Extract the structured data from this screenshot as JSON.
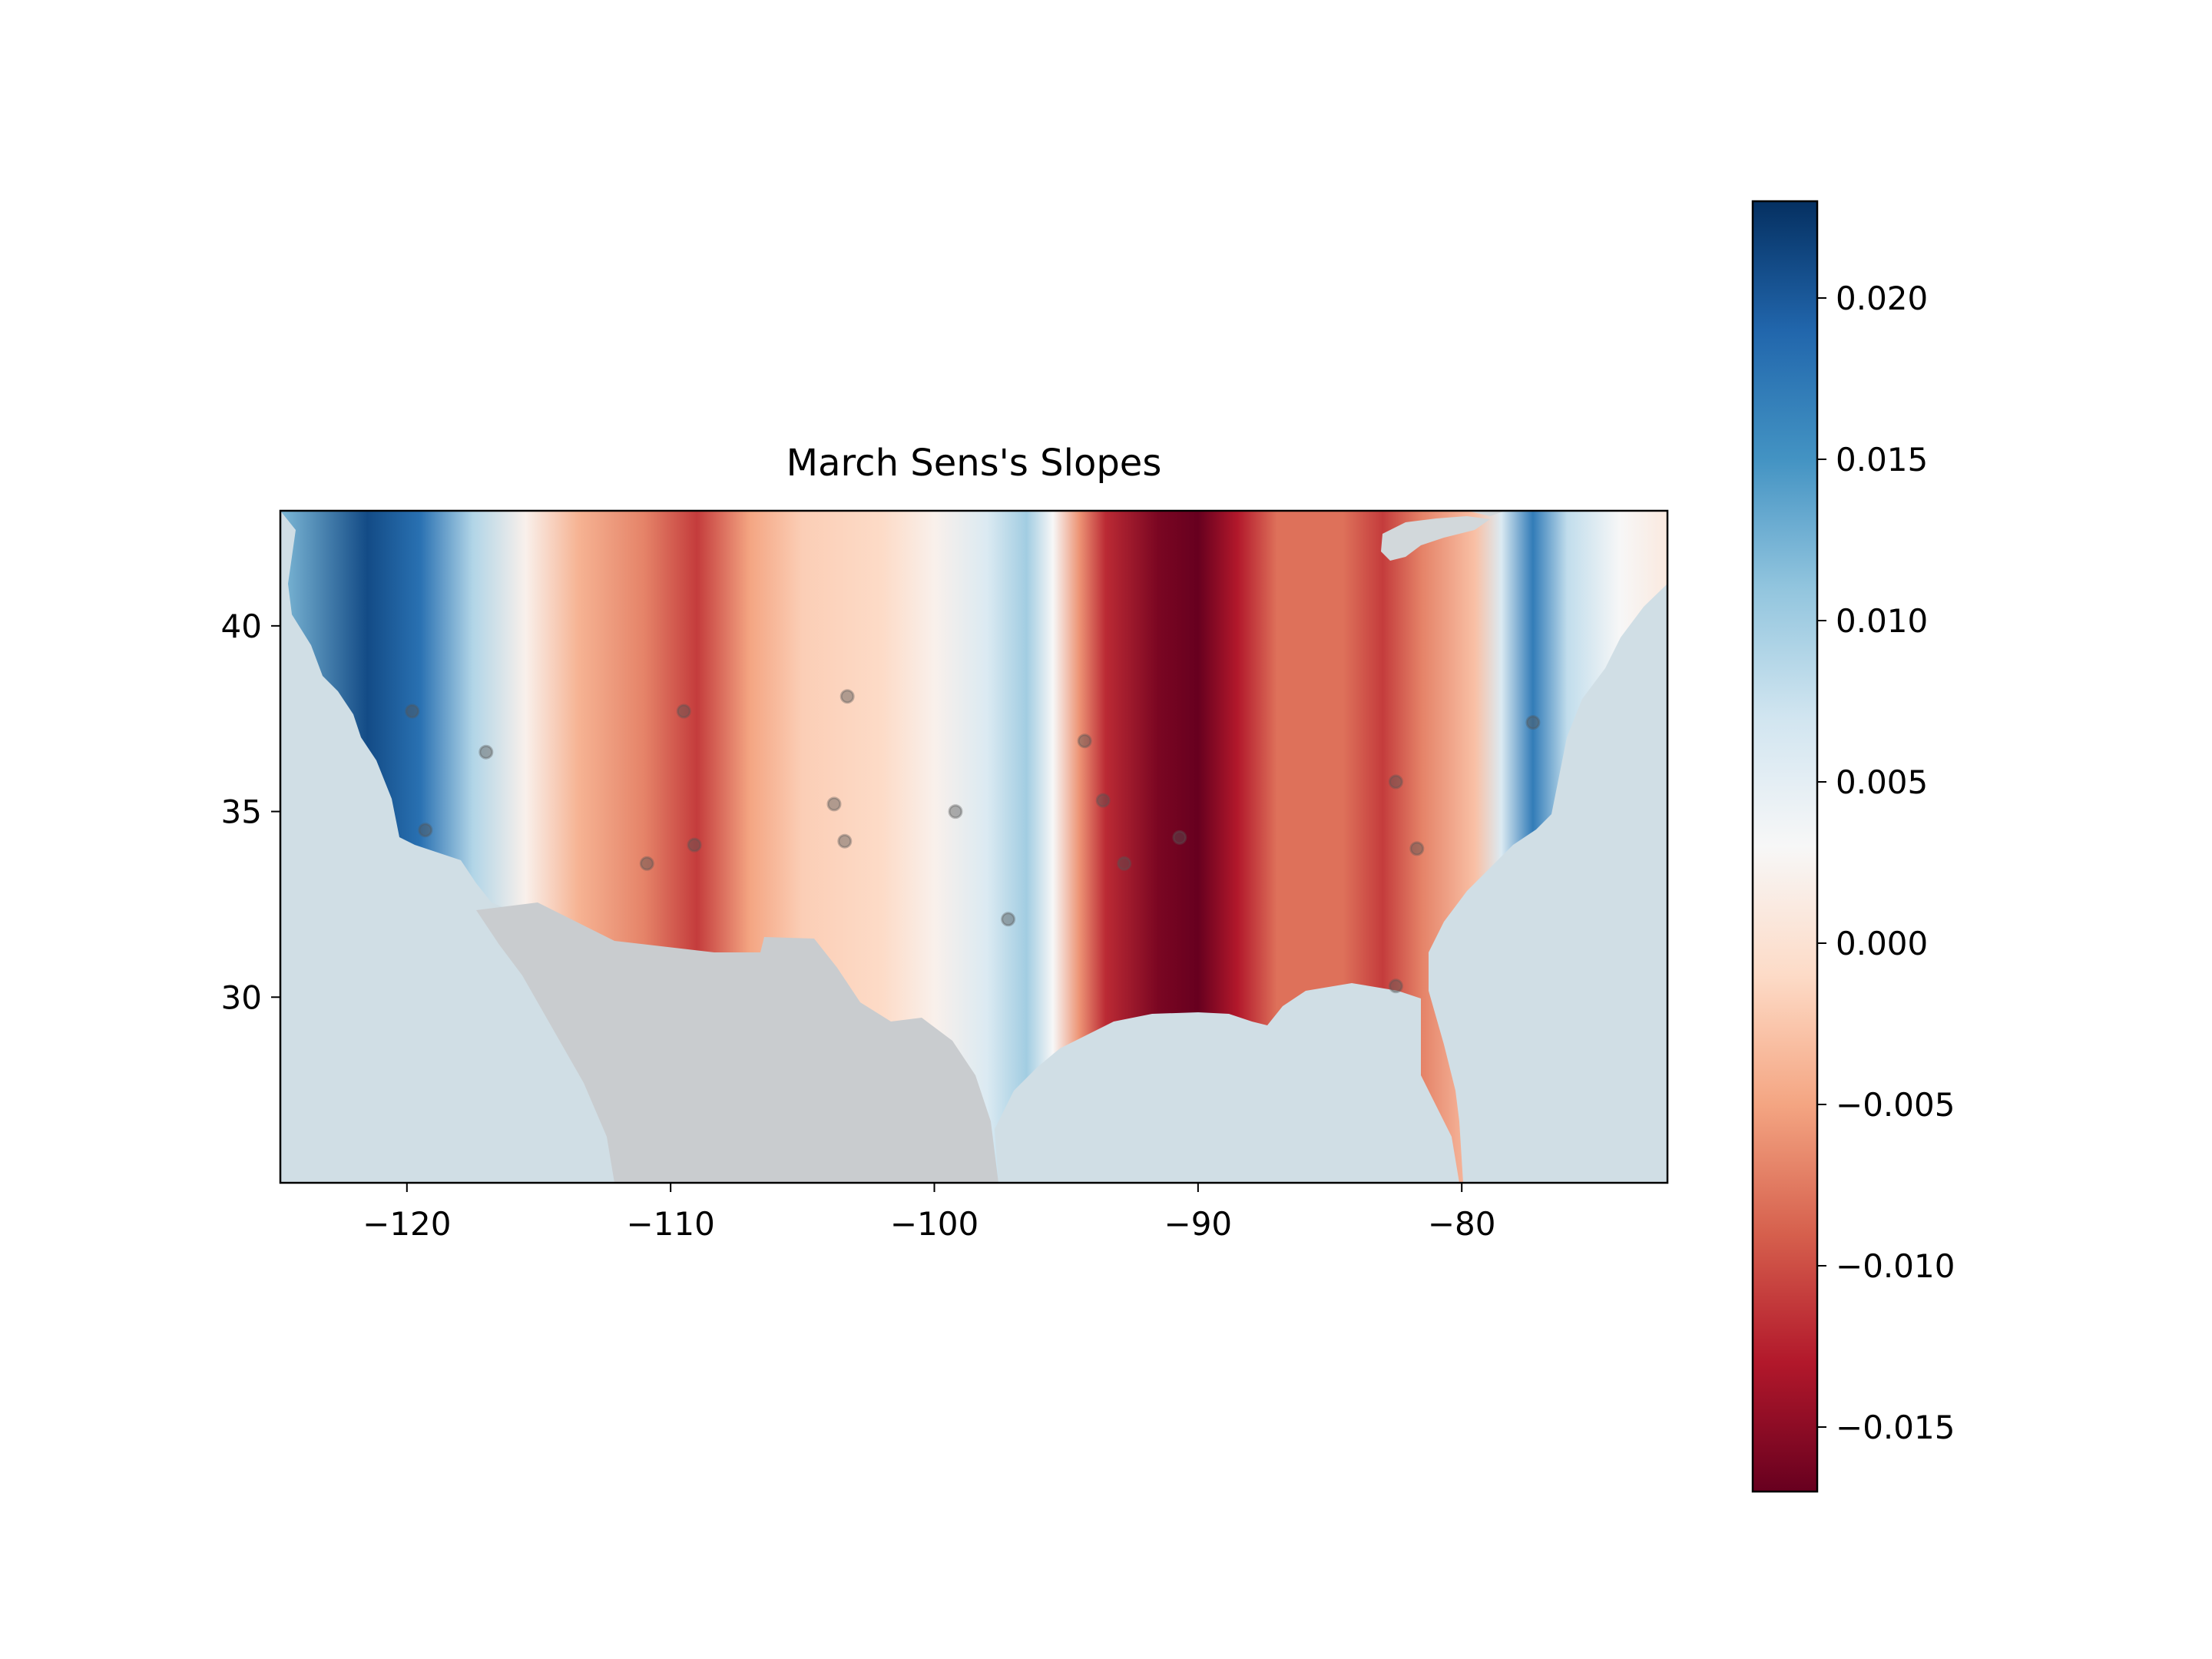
{
  "chart_data": {
    "type": "heatmap",
    "title": "March Sens's Slopes",
    "xlabel": "",
    "ylabel": "",
    "xlim": [
      -124.8,
      -72.2
    ],
    "ylim": [
      25.0,
      43.1
    ],
    "x_ticks": [
      {
        "value": -120,
        "label": "−120"
      },
      {
        "value": -110,
        "label": "−110"
      },
      {
        "value": -100,
        "label": "−100"
      },
      {
        "value": -90,
        "label": "−90"
      },
      {
        "value": -80,
        "label": "−80"
      }
    ],
    "y_ticks": [
      {
        "value": 30,
        "label": "30"
      },
      {
        "value": 35,
        "label": "35"
      },
      {
        "value": 40,
        "label": "40"
      }
    ],
    "colormap": "RdBu",
    "colorbar": {
      "range": [
        -0.017,
        0.023
      ],
      "ticks": [
        {
          "value": 0.02,
          "label": "0.020"
        },
        {
          "value": 0.015,
          "label": "0.015"
        },
        {
          "value": 0.01,
          "label": "0.010"
        },
        {
          "value": 0.005,
          "label": "0.005"
        },
        {
          "value": 0.0,
          "label": "0.000"
        },
        {
          "value": -0.005,
          "label": "−0.005"
        },
        {
          "value": -0.01,
          "label": "−0.010"
        },
        {
          "value": -0.015,
          "label": "−0.015"
        }
      ]
    },
    "slope_bands_by_longitude": [
      {
        "lon": -124.8,
        "value": 0.012
      },
      {
        "lon": -121.5,
        "value": 0.021
      },
      {
        "lon": -119.5,
        "value": 0.018
      },
      {
        "lon": -117.5,
        "value": 0.009
      },
      {
        "lon": -115.5,
        "value": 0.002
      },
      {
        "lon": -113.5,
        "value": -0.004
      },
      {
        "lon": -111.0,
        "value": -0.007
      },
      {
        "lon": -109.0,
        "value": -0.011
      },
      {
        "lon": -107.0,
        "value": -0.005
      },
      {
        "lon": -105.0,
        "value": -0.002
      },
      {
        "lon": -102.0,
        "value": -0.001
      },
      {
        "lon": -100.0,
        "value": 0.002
      },
      {
        "lon": -98.0,
        "value": 0.006
      },
      {
        "lon": -96.5,
        "value": 0.01
      },
      {
        "lon": -95.5,
        "value": 0.003
      },
      {
        "lon": -94.5,
        "value": -0.006
      },
      {
        "lon": -93.5,
        "value": -0.012
      },
      {
        "lon": -91.5,
        "value": -0.016
      },
      {
        "lon": -90.0,
        "value": -0.017
      },
      {
        "lon": -88.5,
        "value": -0.013
      },
      {
        "lon": -87.0,
        "value": -0.008
      },
      {
        "lon": -84.5,
        "value": -0.008
      },
      {
        "lon": -83.0,
        "value": -0.011
      },
      {
        "lon": -81.5,
        "value": -0.007
      },
      {
        "lon": -79.5,
        "value": -0.003
      },
      {
        "lon": -78.5,
        "value": 0.006
      },
      {
        "lon": -77.3,
        "value": 0.017
      },
      {
        "lon": -76.0,
        "value": 0.008
      },
      {
        "lon": -74.0,
        "value": 0.003
      },
      {
        "lon": -72.2,
        "value": 0.001
      }
    ],
    "stations": [
      {
        "lon": -119.8,
        "lat": 37.7
      },
      {
        "lon": -117.0,
        "lat": 36.6
      },
      {
        "lon": -119.3,
        "lat": 34.5
      },
      {
        "lon": -109.5,
        "lat": 37.7
      },
      {
        "lon": -109.1,
        "lat": 34.1
      },
      {
        "lon": -110.9,
        "lat": 33.6
      },
      {
        "lon": -103.3,
        "lat": 38.1
      },
      {
        "lon": -103.8,
        "lat": 35.2
      },
      {
        "lon": -103.4,
        "lat": 34.2
      },
      {
        "lon": -99.2,
        "lat": 35.0
      },
      {
        "lon": -97.2,
        "lat": 32.1
      },
      {
        "lon": -94.3,
        "lat": 36.9
      },
      {
        "lon": -93.6,
        "lat": 35.3
      },
      {
        "lon": -92.8,
        "lat": 33.6
      },
      {
        "lon": -90.7,
        "lat": 34.3
      },
      {
        "lon": -82.5,
        "lat": 35.8
      },
      {
        "lon": -81.7,
        "lat": 34.0
      },
      {
        "lon": -82.5,
        "lat": 30.3
      },
      {
        "lon": -77.3,
        "lat": 37.4
      }
    ],
    "colors": {
      "ocean": "#d0dee5",
      "mexico_land": "#c9cccf",
      "lakes": "#d2d8db",
      "station": "#555555"
    }
  }
}
